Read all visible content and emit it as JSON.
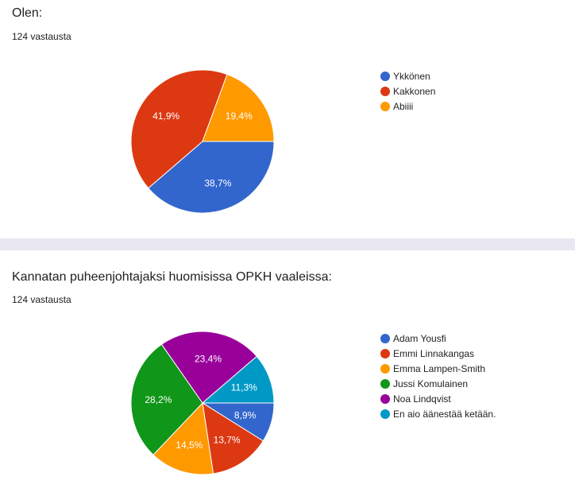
{
  "colors": {
    "blue": "#3366cc",
    "red": "#dc3912",
    "orange": "#ff9900",
    "green": "#109618",
    "purple": "#990099",
    "teal": "#0099c6"
  },
  "questions": [
    {
      "title": "Olen:",
      "response_count": "124 vastausta",
      "legend": [
        "Ykkönen",
        "Kakkonen",
        "Abiiii"
      ]
    },
    {
      "title": "Kannatan puheenjohtajaksi huomisissa OPKH vaaleissa:",
      "response_count": "124 vastausta",
      "legend": [
        "Adam Yousfi",
        "Emmi Linnakangas",
        "Emma Lampen-Smith",
        "Jussi Komulainen",
        "Noa Lindqvist",
        "En aio äänestää ketään."
      ]
    }
  ],
  "chart_data": [
    {
      "type": "pie",
      "title": "Olen:",
      "categories": [
        "Ykkönen",
        "Kakkonen",
        "Abiiii"
      ],
      "values": [
        38.7,
        41.9,
        19.4
      ],
      "labels": [
        "38,7%",
        "41,9%",
        "19,4%"
      ],
      "colors": [
        "#3366cc",
        "#dc3912",
        "#ff9900"
      ],
      "legend_position": "right"
    },
    {
      "type": "pie",
      "title": "Kannatan puheenjohtajaksi huomisissa OPKH vaaleissa:",
      "categories": [
        "Adam Yousfi",
        "Emmi Linnakangas",
        "Emma Lampen-Smith",
        "Jussi Komulainen",
        "Noa Lindqvist",
        "En aio äänestää ketään."
      ],
      "values": [
        8.9,
        13.7,
        14.5,
        28.2,
        23.4,
        11.3
      ],
      "labels": [
        "8,9%",
        "13,7%",
        "14,5%",
        "28,2%",
        "23,4%",
        "11,3%"
      ],
      "colors": [
        "#3366cc",
        "#dc3912",
        "#ff9900",
        "#109618",
        "#990099",
        "#0099c6"
      ],
      "legend_position": "right"
    }
  ]
}
